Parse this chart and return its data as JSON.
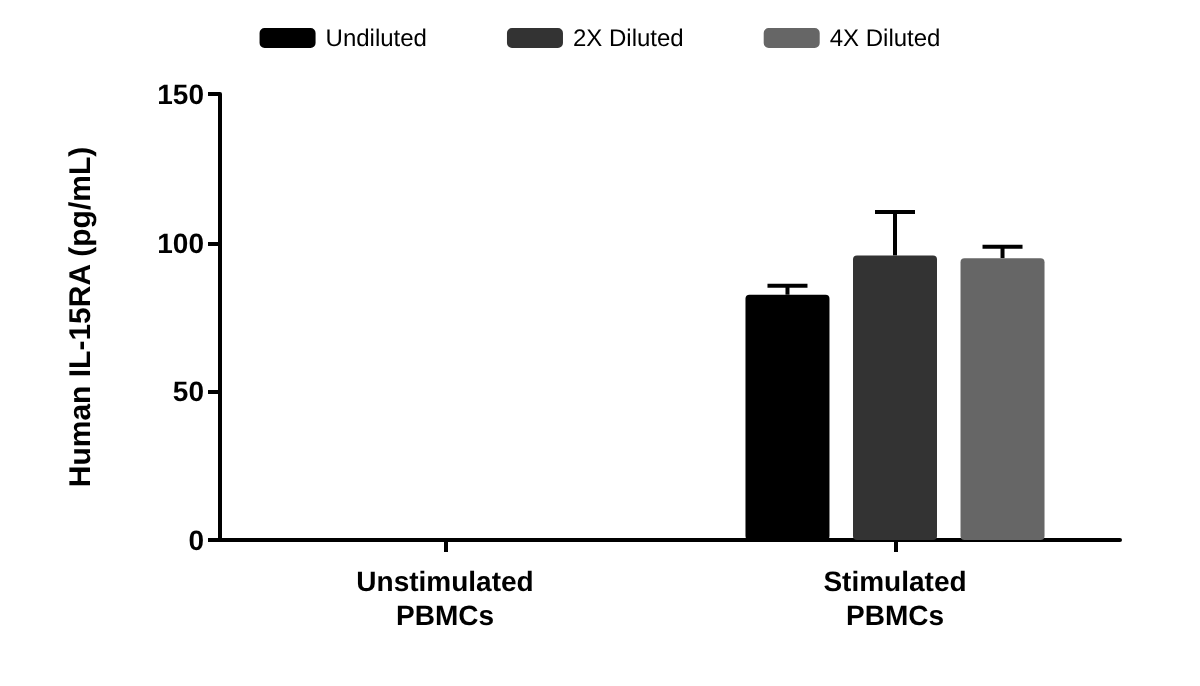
{
  "chart_data": {
    "type": "bar",
    "ylabel": "Human IL-15RA (pg/mL)",
    "categories": [
      "Unstimulated\nPBMCs",
      "Stimulated\nPBMCs"
    ],
    "series": [
      {
        "name": "Undiluted",
        "color": "#000000",
        "values": [
          null,
          82.5
        ],
        "errors": [
          null,
          3
        ]
      },
      {
        "name": "2X Diluted",
        "color": "#333333",
        "values": [
          null,
          95.7
        ],
        "errors": [
          null,
          14.6
        ]
      },
      {
        "name": "4X Diluted",
        "color": "#666666",
        "values": [
          null,
          94.8
        ],
        "errors": [
          null,
          3.8
        ]
      }
    ],
    "ylim": [
      0,
      150
    ],
    "yticks": [
      0,
      50,
      100,
      150
    ],
    "grid": false,
    "legend": "top"
  }
}
